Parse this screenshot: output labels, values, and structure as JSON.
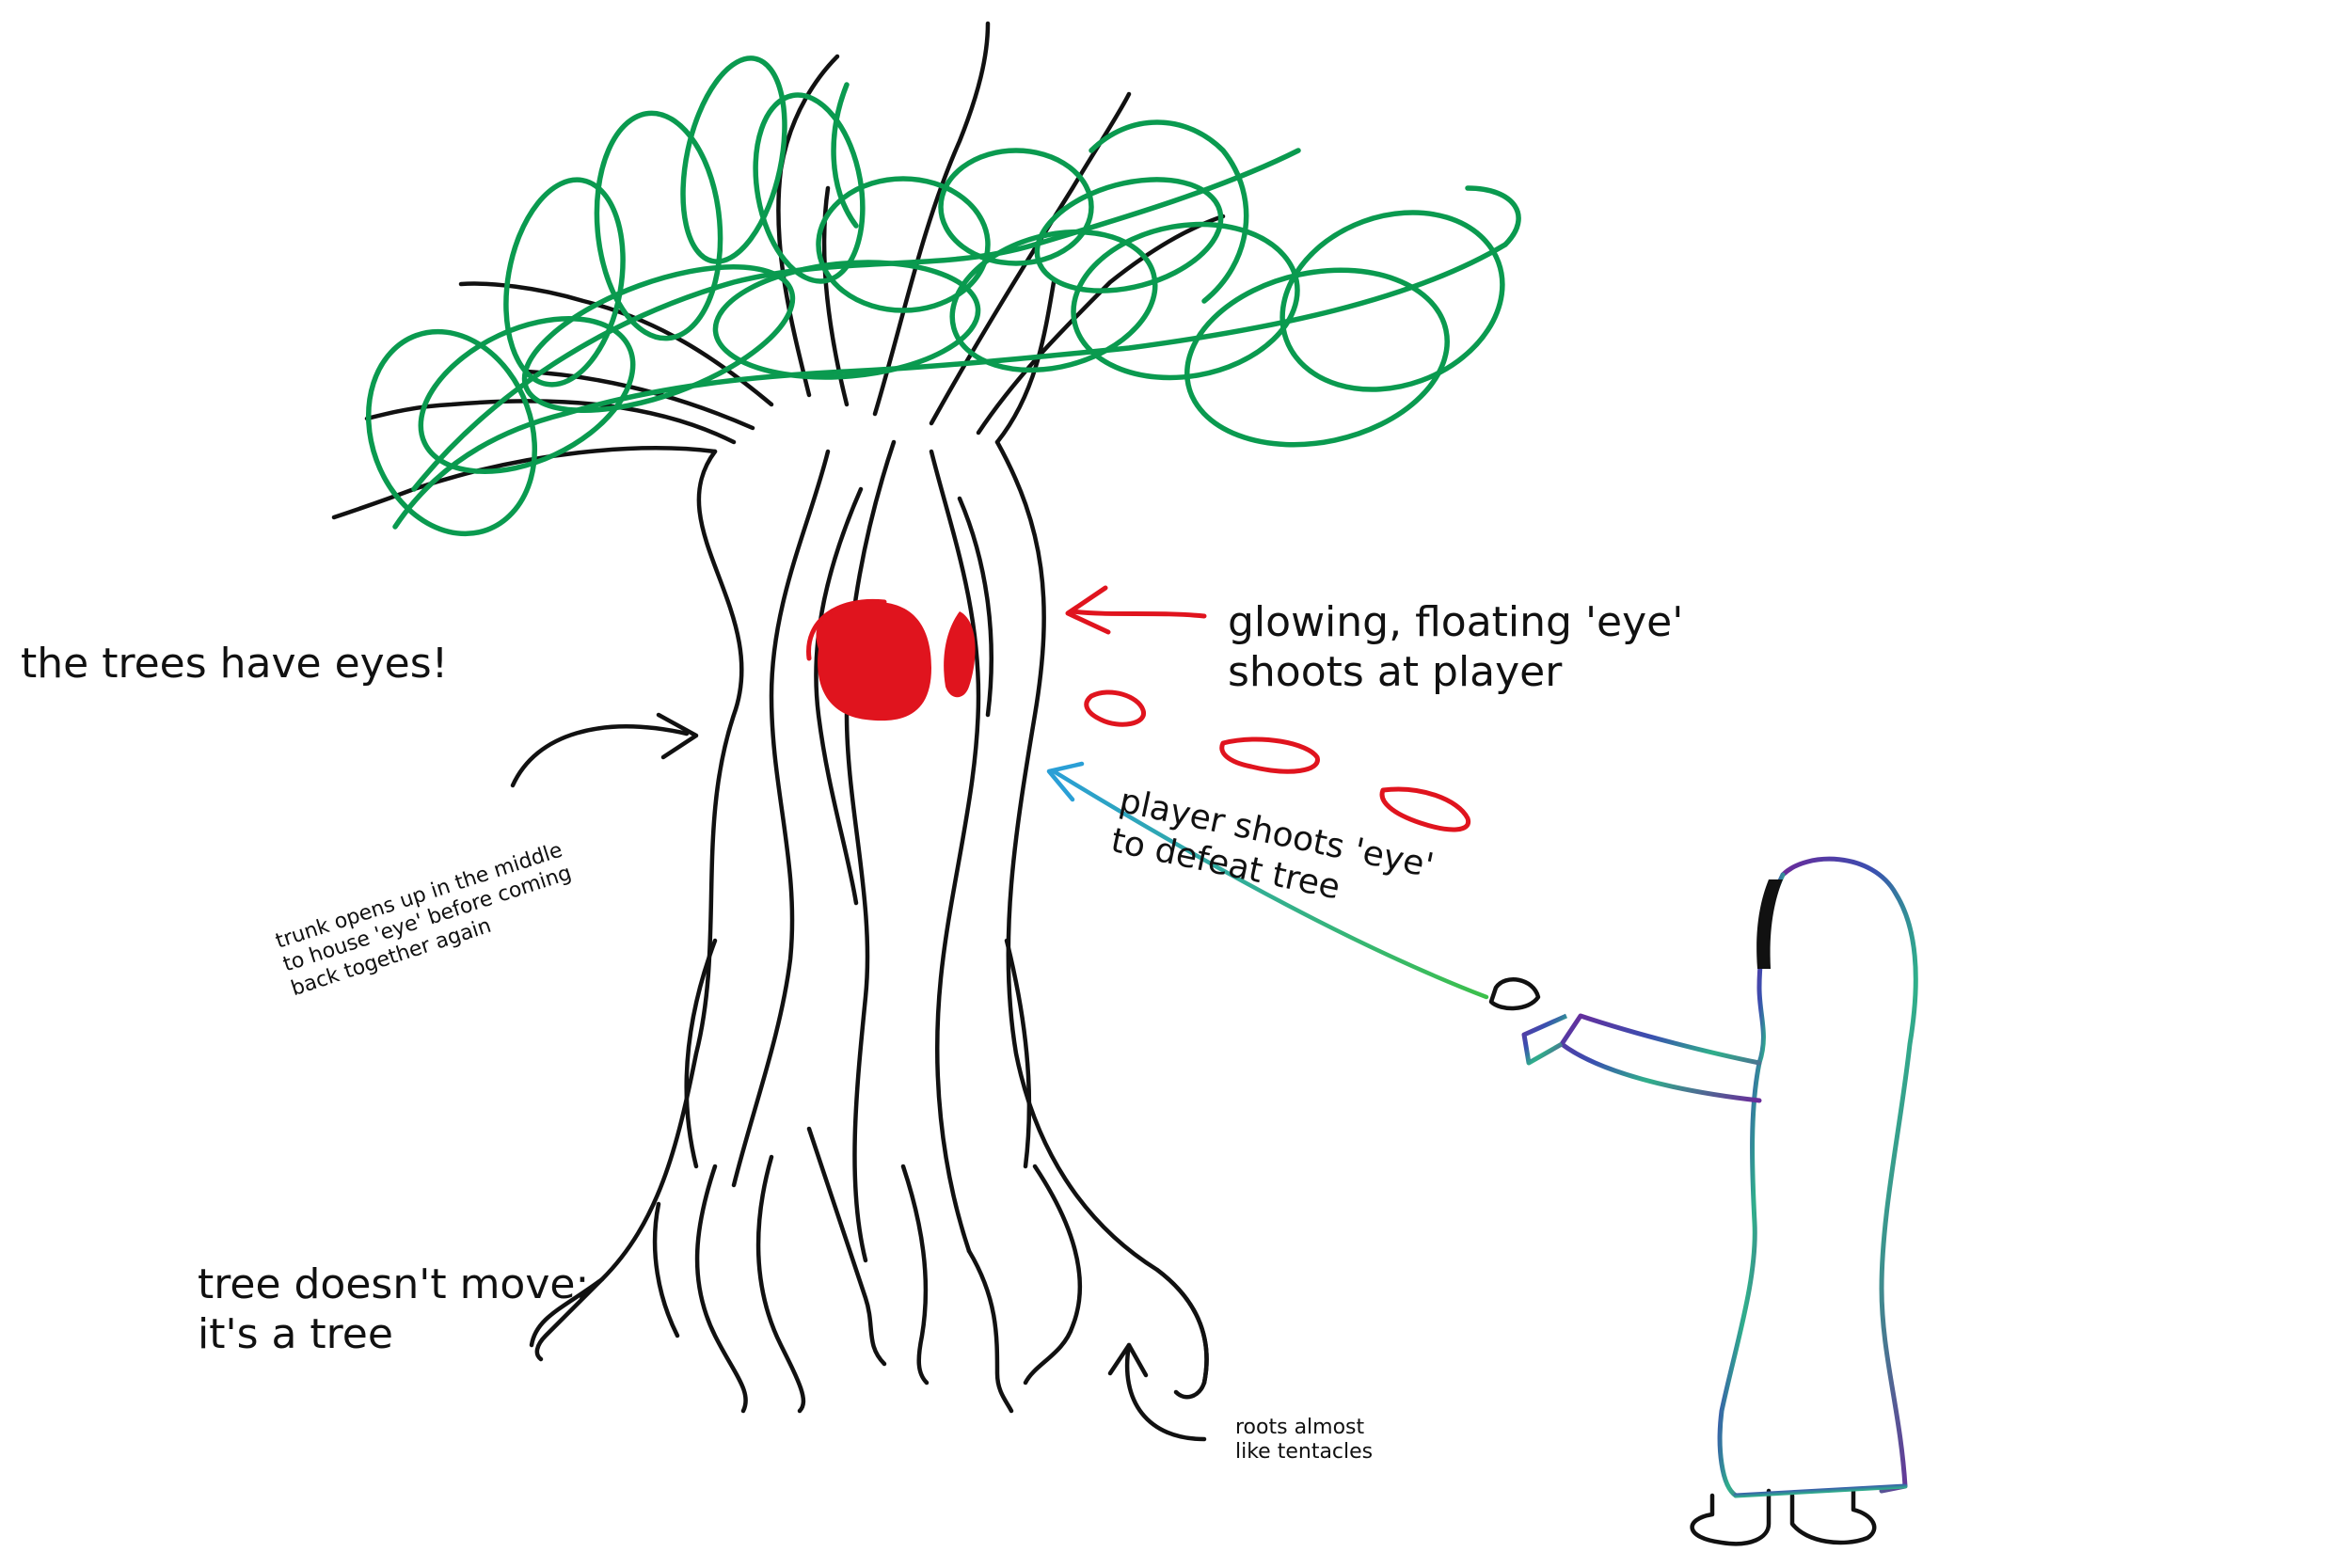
{
  "notes": {
    "trees_have_eyes": "the trees have eyes!",
    "eye_line1": "glowing, floating 'eye'",
    "eye_line2": "shoots at player",
    "player_line1": "player shoots 'eye'",
    "player_line2": "to defeat tree",
    "trunk_line1": "trunk opens up in the middle",
    "trunk_line2": "to house 'eye' before coming",
    "trunk_line3": "back together again",
    "move_line1": "tree doesn't move;",
    "move_line2": "it's a tree",
    "roots_line1": "roots almost",
    "roots_line2": "like tentacles"
  },
  "colors": {
    "ink": "#111111",
    "foliage": "#0a9a4f",
    "eye": "#e0141e",
    "player_beam": "#2a9fd6",
    "robe_outline_a": "#3a4fb0",
    "robe_outline_b": "#6a2a9a",
    "robe_outline_c": "#2fb08a"
  }
}
